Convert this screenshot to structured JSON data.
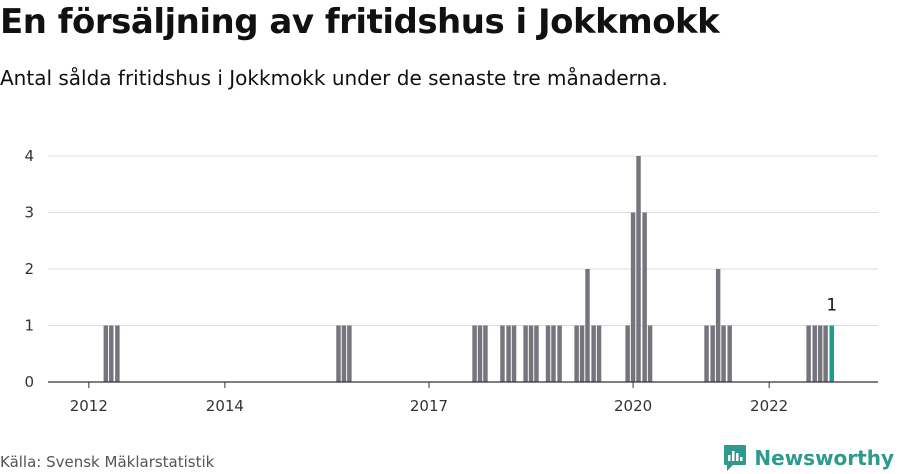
{
  "title": "En försäljning av fritidshus i Jokkmokk",
  "subtitle": "Antal sålda fritidshus i Jokkmokk under de senaste tre månaderna.",
  "source": "Källa: Svensk Mäklarstatistik",
  "brand": {
    "name": "Newsworthy",
    "icon": "newsworthy-logo-icon"
  },
  "colors": {
    "bar": "#75757d",
    "highlight": "#1f9b8e",
    "grid": "#dddddd",
    "axis": "#333333",
    "brand": "#2e9a8e"
  },
  "chart_data": {
    "type": "bar",
    "title": "En försäljning av fritidshus i Jokkmokk",
    "xlabel": "",
    "ylabel": "",
    "ylim": [
      0,
      4
    ],
    "y_ticks": [
      0,
      1,
      2,
      3,
      4
    ],
    "x_range": [
      2011.4,
      2023.6
    ],
    "x_ticks": [
      {
        "value": 2012,
        "label": "2012"
      },
      {
        "value": 2014,
        "label": "2014"
      },
      {
        "value": 2017,
        "label": "2017"
      },
      {
        "value": 2020,
        "label": "2020"
      },
      {
        "value": 2022,
        "label": "2022"
      }
    ],
    "bar_width": 0.0833,
    "x": [
      2012.25,
      2012.33,
      2012.42,
      2015.67,
      2015.75,
      2015.83,
      2017.67,
      2017.75,
      2017.83,
      2018.08,
      2018.17,
      2018.25,
      2018.42,
      2018.5,
      2018.58,
      2018.75,
      2018.83,
      2018.92,
      2019.17,
      2019.25,
      2019.33,
      2019.42,
      2019.5,
      2019.92,
      2020.0,
      2020.08,
      2020.17,
      2020.25,
      2021.08,
      2021.17,
      2021.25,
      2021.33,
      2021.42,
      2022.58,
      2022.67,
      2022.75,
      2022.83,
      2022.92
    ],
    "values": [
      1,
      1,
      1,
      1,
      1,
      1,
      1,
      1,
      1,
      1,
      1,
      1,
      1,
      1,
      1,
      1,
      1,
      1,
      1,
      1,
      2,
      1,
      1,
      1,
      3,
      4,
      3,
      1,
      1,
      1,
      2,
      1,
      1,
      1,
      1,
      1,
      1,
      1
    ],
    "highlight_last": true,
    "annotation": {
      "x": 2022.92,
      "label": "1"
    }
  }
}
